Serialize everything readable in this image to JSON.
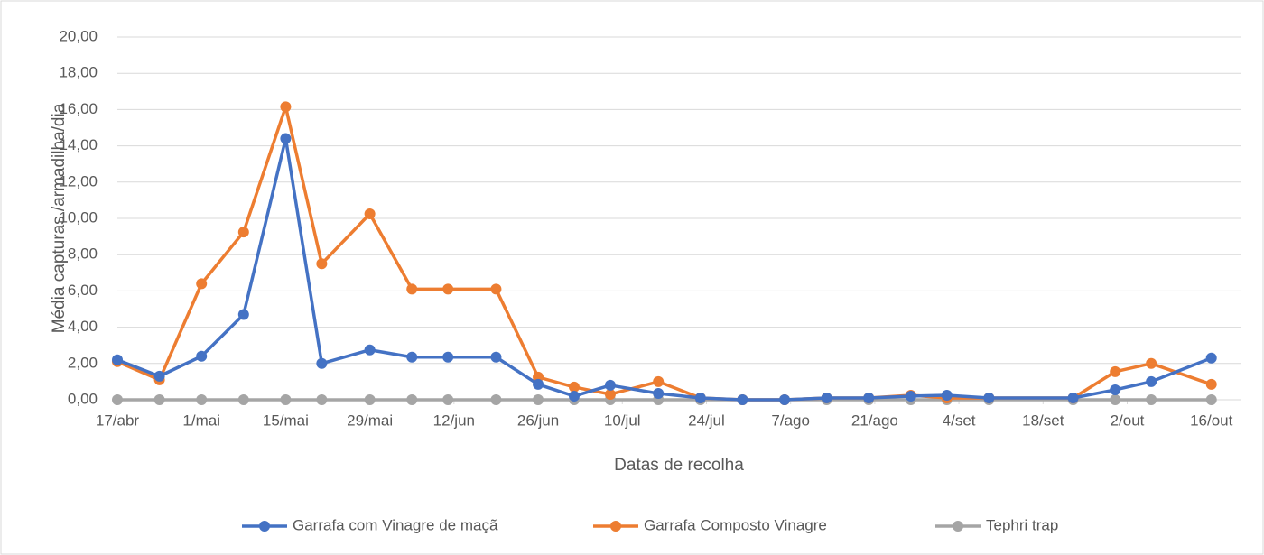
{
  "chart_data": {
    "type": "line",
    "x_label": "Datas de recolha",
    "y_label": "Média capturas /armadilha/dia",
    "x": [
      0,
      7,
      14,
      21,
      28,
      34,
      42,
      49,
      55,
      63,
      70,
      76,
      82,
      90,
      97,
      104,
      111,
      118,
      125,
      132,
      138,
      145,
      159,
      166,
      172,
      182
    ],
    "series": [
      {
        "name": "Garrafa com Vinagre de maçã",
        "color": "#4472c4",
        "values": [
          2.2,
          1.3,
          2.4,
          4.7,
          14.4,
          2.0,
          2.75,
          2.35,
          2.35,
          2.35,
          0.85,
          0.2,
          0.8,
          0.35,
          0.1,
          0,
          0,
          0.1,
          0.1,
          0.2,
          0.25,
          0.1,
          0.1,
          0.55,
          1.0,
          2.3
        ]
      },
      {
        "name": "Garrafa Composto Vinagre",
        "color": "#ed7d31",
        "values": [
          2.1,
          1.1,
          6.4,
          9.25,
          16.15,
          7.5,
          10.25,
          6.1,
          6.1,
          6.1,
          1.25,
          0.7,
          0.3,
          1.0,
          0.1,
          0,
          0,
          0.1,
          0.1,
          0.25,
          0.1,
          0.1,
          0.1,
          1.55,
          2.0,
          0.85
        ]
      },
      {
        "name": "Tephri trap",
        "color": "#a5a5a5",
        "values": [
          0,
          0,
          0,
          0,
          0,
          0,
          0,
          0,
          0,
          0,
          0,
          0,
          0,
          0,
          0,
          0,
          0,
          0,
          0,
          0,
          0,
          0,
          0,
          0,
          0,
          0
        ]
      }
    ],
    "xlim": [
      0,
      187
    ],
    "xticks": [
      {
        "value": 0,
        "label": "17/abr"
      },
      {
        "value": 14,
        "label": "1/mai"
      },
      {
        "value": 28,
        "label": "15/mai"
      },
      {
        "value": 42,
        "label": "29/mai"
      },
      {
        "value": 56,
        "label": "12/jun"
      },
      {
        "value": 70,
        "label": "26/jun"
      },
      {
        "value": 84,
        "label": "10/jul"
      },
      {
        "value": 98,
        "label": "24/jul"
      },
      {
        "value": 112,
        "label": "7/ago"
      },
      {
        "value": 126,
        "label": "21/ago"
      },
      {
        "value": 140,
        "label": "4/set"
      },
      {
        "value": 154,
        "label": "18/set"
      },
      {
        "value": 168,
        "label": "2/out"
      },
      {
        "value": 182,
        "label": "16/out"
      }
    ],
    "ylim": [
      0,
      20
    ],
    "yticks": [
      {
        "value": 0,
        "label": "0,00"
      },
      {
        "value": 2,
        "label": "2,00"
      },
      {
        "value": 4,
        "label": "4,00"
      },
      {
        "value": 6,
        "label": "6,00"
      },
      {
        "value": 8,
        "label": "8,00"
      },
      {
        "value": 10,
        "label": "10,00"
      },
      {
        "value": 12,
        "label": "12,00"
      },
      {
        "value": 14,
        "label": "14,00"
      },
      {
        "value": 16,
        "label": "16,00"
      },
      {
        "value": 18,
        "label": "18,00"
      },
      {
        "value": 20,
        "label": "20,00"
      }
    ],
    "grid": true,
    "legend": "bottom"
  }
}
